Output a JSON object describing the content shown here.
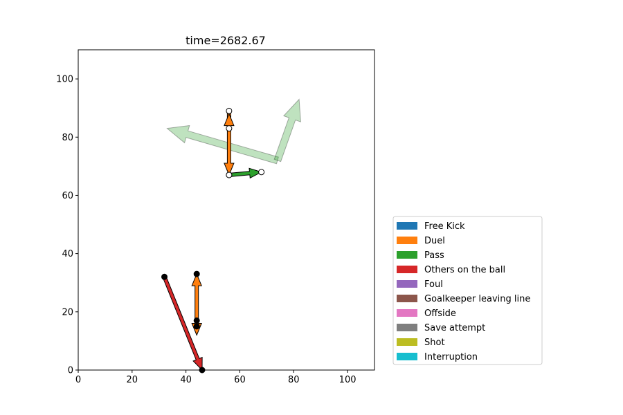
{
  "chart_data": {
    "type": "scatter",
    "title": "time=2682.67",
    "xlabel": "",
    "ylabel": "",
    "xlim": [
      0,
      110
    ],
    "ylim": [
      0,
      110
    ],
    "xticks": [
      0,
      20,
      40,
      60,
      80,
      100
    ],
    "yticks": [
      0,
      20,
      40,
      60,
      80,
      100
    ],
    "grid": false,
    "legend_position": "lower-right outside",
    "legend": [
      {
        "label": "Free Kick",
        "color": "#1f77b4"
      },
      {
        "label": "Duel",
        "color": "#ff7f0e"
      },
      {
        "label": "Pass",
        "color": "#2ca02c"
      },
      {
        "label": "Others on the ball",
        "color": "#d62728"
      },
      {
        "label": "Foul",
        "color": "#9467bd"
      },
      {
        "label": "Goalkeeper leaving line",
        "color": "#8c564b"
      },
      {
        "label": "Offside",
        "color": "#e377c2"
      },
      {
        "label": "Save attempt",
        "color": "#7f7f7f"
      },
      {
        "label": "Shot",
        "color": "#bcbd22"
      },
      {
        "label": "Interruption",
        "color": "#17becf"
      }
    ],
    "faded_events": [
      {
        "event": "Pass",
        "from": [
          74,
          72
        ],
        "to": [
          33,
          83
        ]
      },
      {
        "event": "Pass",
        "from": [
          74,
          72
        ],
        "to": [
          82,
          93
        ]
      }
    ],
    "events": [
      {
        "event": "Duel",
        "from": [
          56,
          89
        ],
        "to": [
          56,
          67
        ],
        "start_marker": "open",
        "end_marker": "open"
      },
      {
        "event": "Duel",
        "from": [
          56,
          83
        ],
        "to": [
          56,
          88
        ],
        "start_marker": "open",
        "end_marker": "none"
      },
      {
        "event": "Pass",
        "from": [
          56,
          67
        ],
        "to": [
          68,
          68
        ],
        "start_marker": "open",
        "end_marker": "open"
      },
      {
        "event": "Duel",
        "from": [
          44,
          17
        ],
        "to": [
          44,
          12
        ],
        "start_marker": "filled",
        "end_marker": "none"
      },
      {
        "event": "Duel",
        "from": [
          44,
          15
        ],
        "to": [
          44,
          33
        ],
        "start_marker": "filled",
        "end_marker": "filled"
      },
      {
        "event": "Others on the ball",
        "from": [
          32,
          32
        ],
        "to": [
          46,
          0
        ],
        "start_marker": "filled",
        "end_marker": "filled"
      }
    ]
  }
}
